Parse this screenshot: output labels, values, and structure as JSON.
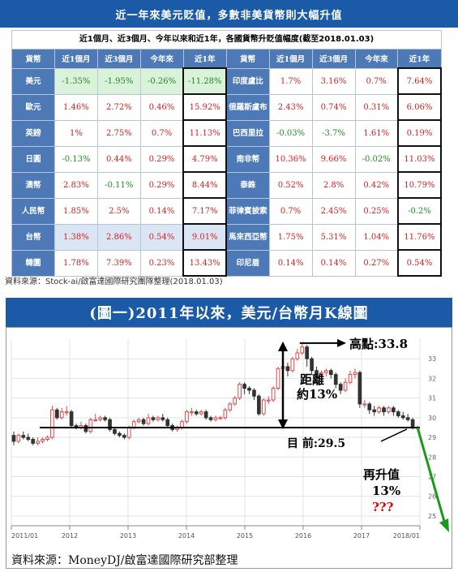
{
  "top": {
    "title": "近一年來美元貶值，多數非美貨幣則大幅升值",
    "table_caption": "近1個月、近3個月、今年以來和近1年，各國貨幣升貶值幅度(截至2018.01.03)",
    "headers": [
      "貨幣",
      "近1個月",
      "近3個月",
      "今年來",
      "近1年",
      "貨幣",
      "近1個月",
      "近3個月",
      "今年來",
      "近1年"
    ],
    "rows": [
      {
        "l": [
          "美元",
          "-1.35%",
          "-1.95%",
          "-0.26%",
          "-11.28%"
        ],
        "r": [
          "印度盧比",
          "1.7%",
          "3.16%",
          "0.7%",
          "7.64%"
        ]
      },
      {
        "l": [
          "歐元",
          "1.46%",
          "2.72%",
          "0.46%",
          "15.92%"
        ],
        "r": [
          "俄羅斯盧布",
          "2.43%",
          "0.74%",
          "0.31%",
          "6.06%"
        ]
      },
      {
        "l": [
          "英鎊",
          "1%",
          "2.75%",
          "0.7%",
          "11.13%"
        ],
        "r": [
          "巴西里拉",
          "-0.03%",
          "-3.7%",
          "1.61%",
          "0.19%"
        ]
      },
      {
        "l": [
          "日圓",
          "-0.13%",
          "0.44%",
          "0.29%",
          "4.79%"
        ],
        "r": [
          "南非幣",
          "10.36%",
          "9.66%",
          "-0.02%",
          "11.03%"
        ]
      },
      {
        "l": [
          "澳幣",
          "2.83%",
          "-0.11%",
          "0.29%",
          "8.44%"
        ],
        "r": [
          "泰銖",
          "0.52%",
          "2.8%",
          "0.42%",
          "10.79%"
        ]
      },
      {
        "l": [
          "人民幣",
          "1.85%",
          "2.5%",
          "0.14%",
          "7.17%"
        ],
        "r": [
          "菲律賓披索",
          "0.7%",
          "2.45%",
          "0.25%",
          "-0.2%"
        ]
      },
      {
        "l": [
          "台幣",
          "1.38%",
          "2.86%",
          "0.54%",
          "9.01%"
        ],
        "r": [
          "馬來西亞幣",
          "1.75%",
          "5.31%",
          "1.04%",
          "11.76%"
        ]
      },
      {
        "l": [
          "韓圜",
          "1.78%",
          "7.39%",
          "0.23%",
          "13.43%"
        ],
        "r": [
          "印尼盾",
          "0.14%",
          "0.14%",
          "0.27%",
          "0.54%"
        ]
      }
    ],
    "source": "資料來源：Stock-ai/啟富達國際研究團隊整理(2018.01.03)"
  },
  "colors": {
    "title_bg": "#1a5aa6",
    "header_bg": "#4d79b6",
    "positive": "#d42020",
    "negative": "#1e8a1e",
    "candle_up": "#e04848",
    "candle_down": "#333333",
    "arrow_green": "#1a9a1a",
    "annotation_red": "#e00000"
  },
  "chart_data": {
    "type": "candlestick",
    "title": "(圖一)2011年以來，美元/台幣月K線圖",
    "x_range": [
      "2011-01",
      "2018-01"
    ],
    "y_range": [
      24.5,
      34
    ],
    "x_ticks": [
      "2011/01",
      "2012",
      "2013",
      "2014",
      "2015",
      "2016",
      "2017",
      "2018/01"
    ],
    "y_ticks": [
      25,
      26,
      27,
      28,
      29,
      30,
      31,
      32,
      33
    ],
    "grid": true,
    "high_point": 33.8,
    "current": 29.5,
    "annotations": {
      "high": "高點:33.8",
      "distance_line1": "距離",
      "distance_line2": "約13%",
      "current": "目 前:29.5",
      "rise_line1": "再升值",
      "rise_line2": "13%",
      "rise_line3": "???"
    },
    "series": [
      {
        "values": [
          [
            29.1,
            28.8,
            29.3,
            28.6
          ],
          [
            28.8,
            29.1,
            29.2,
            28.7
          ],
          [
            29.1,
            29.0,
            29.3,
            28.9
          ],
          [
            29.0,
            28.9,
            29.2,
            28.8
          ],
          [
            28.9,
            28.7,
            29.0,
            28.6
          ],
          [
            28.7,
            28.8,
            29.0,
            28.6
          ],
          [
            28.8,
            28.9,
            29.0,
            28.7
          ],
          [
            28.9,
            29.0,
            29.1,
            28.8
          ],
          [
            29.0,
            30.4,
            30.6,
            28.9
          ],
          [
            30.4,
            30.0,
            30.5,
            29.9
          ],
          [
            30.0,
            30.3,
            30.5,
            29.9
          ],
          [
            30.3,
            30.3,
            30.6,
            30.1
          ],
          [
            30.3,
            29.6,
            30.4,
            29.5
          ],
          [
            29.6,
            29.5,
            29.7,
            29.4
          ],
          [
            29.5,
            29.6,
            29.8,
            29.4
          ],
          [
            29.6,
            29.3,
            29.7,
            29.2
          ],
          [
            29.3,
            29.9,
            30.0,
            29.2
          ],
          [
            29.9,
            29.9,
            30.2,
            29.8
          ],
          [
            29.9,
            30.0,
            30.1,
            29.8
          ],
          [
            30.0,
            29.9,
            30.1,
            29.8
          ],
          [
            29.9,
            29.4,
            30.0,
            29.3
          ],
          [
            29.4,
            29.2,
            29.5,
            29.1
          ],
          [
            29.2,
            29.1,
            29.3,
            29.0
          ],
          [
            29.1,
            29.0,
            29.2,
            28.9
          ],
          [
            29.0,
            29.5,
            29.6,
            28.9
          ],
          [
            29.5,
            29.8,
            29.9,
            29.4
          ],
          [
            29.8,
            29.9,
            30.0,
            29.7
          ],
          [
            29.9,
            29.7,
            30.0,
            29.6
          ],
          [
            29.7,
            30.0,
            30.2,
            29.6
          ],
          [
            30.0,
            29.9,
            30.1,
            29.8
          ],
          [
            29.9,
            30.0,
            30.1,
            29.8
          ],
          [
            30.0,
            29.9,
            30.2,
            29.8
          ],
          [
            29.9,
            29.6,
            30.0,
            29.5
          ],
          [
            29.6,
            29.4,
            29.7,
            29.3
          ],
          [
            29.4,
            29.5,
            29.6,
            29.3
          ],
          [
            29.5,
            29.8,
            29.9,
            29.4
          ],
          [
            29.8,
            30.3,
            30.4,
            29.7
          ],
          [
            30.3,
            30.3,
            30.5,
            30.1
          ],
          [
            30.3,
            30.2,
            30.4,
            30.1
          ],
          [
            30.2,
            30.3,
            30.4,
            30.1
          ],
          [
            30.3,
            30.0,
            30.4,
            29.9
          ],
          [
            30.0,
            29.9,
            30.1,
            29.8
          ],
          [
            29.9,
            30.0,
            30.1,
            29.8
          ],
          [
            30.0,
            30.0,
            30.1,
            29.9
          ],
          [
            30.0,
            30.4,
            30.5,
            29.9
          ],
          [
            30.4,
            30.7,
            30.8,
            30.3
          ],
          [
            30.7,
            31.0,
            31.1,
            30.6
          ],
          [
            31.0,
            31.7,
            31.8,
            30.9
          ],
          [
            31.7,
            31.5,
            31.8,
            31.2
          ],
          [
            31.5,
            31.4,
            31.6,
            31.2
          ],
          [
            31.4,
            31.1,
            31.5,
            30.9
          ],
          [
            31.1,
            30.2,
            31.2,
            30.1
          ],
          [
            30.2,
            30.9,
            31.0,
            30.1
          ],
          [
            30.9,
            30.9,
            31.1,
            30.7
          ],
          [
            30.9,
            31.5,
            31.6,
            30.8
          ],
          [
            31.5,
            32.5,
            32.6,
            31.4
          ],
          [
            32.5,
            32.6,
            33.0,
            32.2
          ],
          [
            32.6,
            32.4,
            32.8,
            32.1
          ],
          [
            32.4,
            33.0,
            33.1,
            32.3
          ],
          [
            33.0,
            33.3,
            33.5,
            32.9
          ],
          [
            33.3,
            33.6,
            33.8,
            33.2
          ],
          [
            33.6,
            33.0,
            33.7,
            32.6
          ],
          [
            33.0,
            32.4,
            33.1,
            32.2
          ],
          [
            32.4,
            32.2,
            32.6,
            32.0
          ],
          [
            32.2,
            32.3,
            32.4,
            31.9
          ],
          [
            32.3,
            32.4,
            32.5,
            32.1
          ],
          [
            32.4,
            32.2,
            32.5,
            32.0
          ],
          [
            32.2,
            31.7,
            32.3,
            31.5
          ],
          [
            31.7,
            31.4,
            31.8,
            31.2
          ],
          [
            31.4,
            31.8,
            32.0,
            31.3
          ],
          [
            31.8,
            32.2,
            32.4,
            31.7
          ],
          [
            32.2,
            32.3,
            32.5,
            32.0
          ],
          [
            32.3,
            30.7,
            32.4,
            30.5
          ],
          [
            30.7,
            30.7,
            30.9,
            30.5
          ],
          [
            30.7,
            30.4,
            30.8,
            30.2
          ],
          [
            30.4,
            30.3,
            30.6,
            30.1
          ],
          [
            30.3,
            30.5,
            30.6,
            30.2
          ],
          [
            30.5,
            30.3,
            30.6,
            30.1
          ],
          [
            30.3,
            30.5,
            30.6,
            30.2
          ],
          [
            30.5,
            30.3,
            30.6,
            30.1
          ],
          [
            30.3,
            30.1,
            30.4,
            30.0
          ],
          [
            30.1,
            30.0,
            30.3,
            29.9
          ],
          [
            30.0,
            29.9,
            30.2,
            29.8
          ],
          [
            29.9,
            29.5,
            30.0,
            29.4
          ],
          [
            29.5,
            29.5,
            29.6,
            29.4
          ]
        ]
      }
    ]
  },
  "bottom": {
    "source": "資料來源：MoneyDJ/啟富達國際研究部整理"
  }
}
